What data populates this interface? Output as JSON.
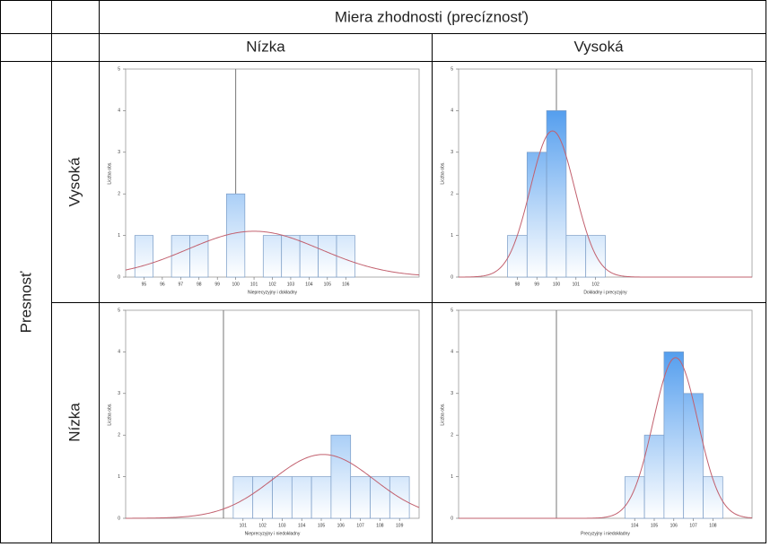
{
  "table": {
    "header": "Miera zhodnosti (precíznosť)",
    "columns": [
      "Nízka",
      "Vysoká"
    ],
    "row_header": "Presnosť",
    "rows": [
      "Vysoká",
      "Nízka"
    ]
  },
  "chart_data": [
    {
      "type": "histogram",
      "x_label": "Nieprecyzyjny i dokładny",
      "y_label": "Liczba obs.",
      "color": "#2a86ea",
      "bins": [
        94.5,
        95.5,
        96.5,
        97.5,
        98.5,
        99.5,
        100.5,
        101.5,
        102.5,
        103.5,
        104.5,
        105.5,
        106.5
      ],
      "values": [
        1,
        0,
        1,
        1,
        0,
        2,
        0,
        1,
        1,
        1,
        1,
        1
      ],
      "reference_line": 100,
      "xlim": [
        94,
        110
      ],
      "xticks": [
        95,
        96,
        97,
        98,
        99,
        100,
        101,
        102,
        103,
        104,
        105,
        106
      ],
      "ylim": [
        0,
        5
      ],
      "yticks": [
        0,
        1,
        2,
        3,
        4,
        5
      ]
    },
    {
      "type": "histogram",
      "x_label": "Dokładny i precyzyjny",
      "y_label": "Liczba obs.",
      "color": "#2a86ea",
      "bins": [
        97.5,
        98.5,
        99.5,
        100.5,
        101.5,
        102.5
      ],
      "values": [
        1,
        3,
        4,
        1,
        1
      ],
      "reference_line": 100,
      "xlim": [
        95,
        110
      ],
      "xticks": [
        98,
        99,
        100,
        101,
        102
      ],
      "ylim": [
        0,
        5
      ],
      "yticks": [
        0,
        1,
        2,
        3,
        4,
        5
      ]
    },
    {
      "type": "histogram",
      "x_label": "Nieprecyzyjny i niedokładny",
      "y_label": "Liczba obs.",
      "color": "#2a86ea",
      "bins": [
        100.5,
        101.5,
        102.5,
        103.5,
        104.5,
        105.5,
        106.5,
        107.5,
        108.5,
        109.5
      ],
      "values": [
        1,
        1,
        1,
        1,
        1,
        2,
        1,
        1,
        1
      ],
      "reference_line": 100,
      "xlim": [
        95,
        110
      ],
      "xticks": [
        101,
        102,
        103,
        104,
        105,
        106,
        107,
        108,
        109
      ],
      "ylim": [
        0,
        5
      ],
      "yticks": [
        0,
        1,
        2,
        3,
        4,
        5
      ]
    },
    {
      "type": "histogram",
      "x_label": "Precyzyjny i niedokładny",
      "y_label": "Liczba obs.",
      "color": "#2a86ea",
      "bins": [
        103.5,
        104.5,
        105.5,
        106.5,
        107.5,
        108.5
      ],
      "values": [
        1,
        2,
        4,
        3,
        1
      ],
      "reference_line": 100,
      "xlim": [
        95,
        110
      ],
      "xticks": [
        104,
        105,
        106,
        107,
        108
      ],
      "ylim": [
        0,
        5
      ],
      "yticks": [
        0,
        1,
        2,
        3,
        4,
        5
      ]
    }
  ]
}
